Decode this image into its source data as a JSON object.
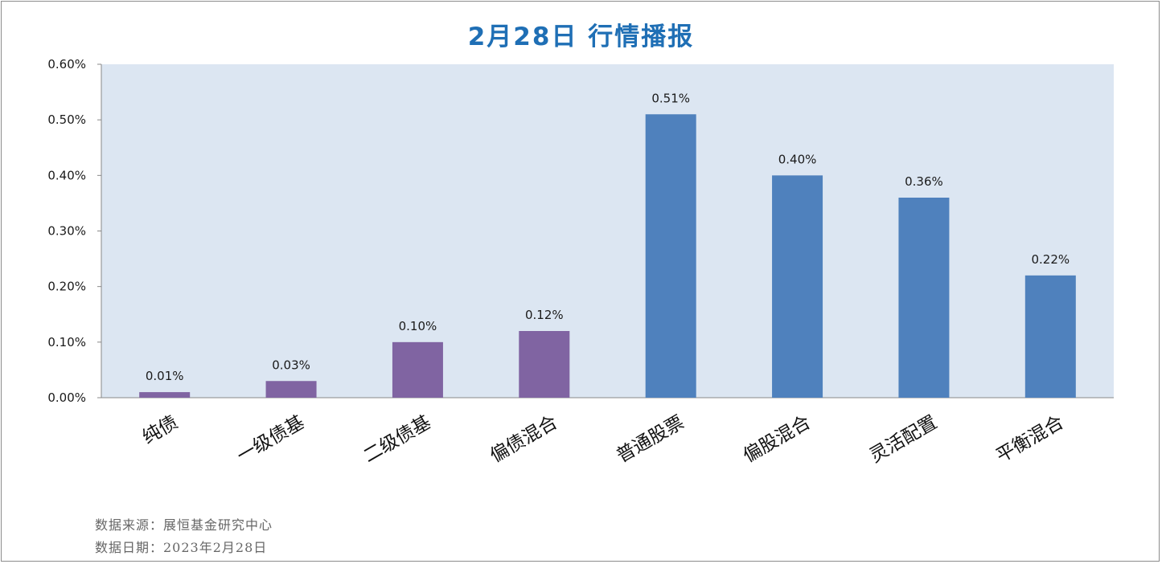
{
  "chart_data": {
    "type": "bar",
    "title": "2月28日  行情播报",
    "xlabel": "",
    "ylabel": "",
    "ylim": [
      0,
      0.6
    ],
    "yticks": [
      "0.00%",
      "0.10%",
      "0.20%",
      "0.30%",
      "0.40%",
      "0.50%",
      "0.60%"
    ],
    "grid": false,
    "categories": [
      "纯债",
      "一级债基",
      "二级债基",
      "偏债混合",
      "普通股票",
      "偏股混合",
      "灵活配置",
      "平衡混合"
    ],
    "values": [
      0.01,
      0.03,
      0.1,
      0.12,
      0.51,
      0.4,
      0.36,
      0.22
    ],
    "labels": [
      "0.01%",
      "0.03%",
      "0.10%",
      "0.12%",
      "0.51%",
      "0.40%",
      "0.36%",
      "0.22%"
    ],
    "colors": [
      "#8064a2",
      "#8064a2",
      "#8064a2",
      "#8064a2",
      "#4f81bd",
      "#4f81bd",
      "#4f81bd",
      "#4f81bd"
    ],
    "plot_background": "#dce6f2"
  },
  "footer": {
    "source": "数据来源：展恒基金研究中心",
    "date": "数据日期：2023年2月28日"
  }
}
